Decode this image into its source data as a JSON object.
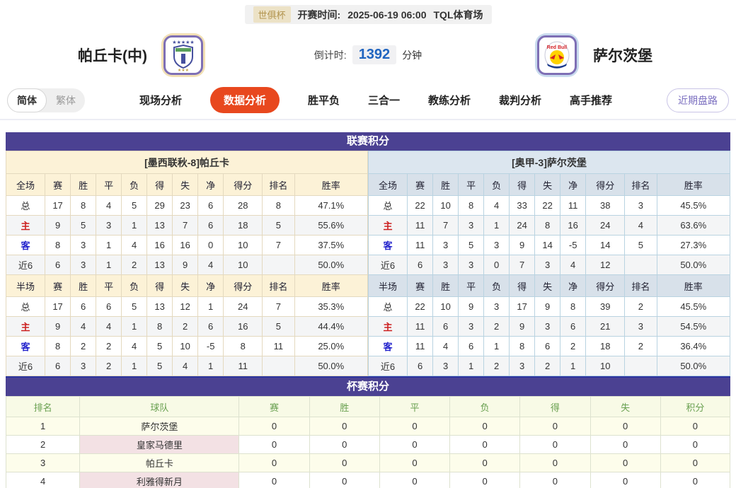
{
  "meta": {
    "league_badge": "世俱杯",
    "kickoff_label": "开赛时间:",
    "kickoff_time": "2025-06-19 06:00",
    "venue": "TQL体育场"
  },
  "header": {
    "home_team": "帕丘卡(中)",
    "away_team": "萨尔茨堡",
    "countdown_label": "倒计时:",
    "countdown_value": "1392",
    "countdown_unit": "分钟",
    "home_logo_icon": "pachuca-crest-icon",
    "away_logo_icon": "redbull-salzburg-crest-icon"
  },
  "nav": {
    "lang": [
      "简体",
      "繁体"
    ],
    "active_lang": "简体",
    "tabs": [
      "现场分析",
      "数据分析",
      "胜平负",
      "三合一",
      "教练分析",
      "裁判分析",
      "高手推荐"
    ],
    "active_tab": "数据分析",
    "recent_button": "近期盘路"
  },
  "colors": {
    "section_bar": "#4b4192",
    "active_tab": "#e8481e",
    "countdown_value": "#2065c0",
    "home_label": "#cc2020",
    "away_label": "#2222cc"
  },
  "league": {
    "title": "联赛积分",
    "columns_full": [
      "全场",
      "赛",
      "胜",
      "平",
      "负",
      "得",
      "失",
      "净",
      "得分",
      "排名",
      "胜率"
    ],
    "columns_half": [
      "半场",
      "赛",
      "胜",
      "平",
      "负",
      "得",
      "失",
      "净",
      "得分",
      "排名",
      "胜率"
    ],
    "home": {
      "subtitle": "[墨西联秋-8]帕丘卡",
      "full_rows": [
        {
          "label": "总",
          "values": [
            "17",
            "8",
            "4",
            "5",
            "29",
            "23",
            "6",
            "28",
            "8",
            "47.1%"
          ]
        },
        {
          "label": "主",
          "values": [
            "9",
            "5",
            "3",
            "1",
            "13",
            "7",
            "6",
            "18",
            "5",
            "55.6%"
          ]
        },
        {
          "label": "客",
          "values": [
            "8",
            "3",
            "1",
            "4",
            "16",
            "16",
            "0",
            "10",
            "7",
            "37.5%"
          ]
        },
        {
          "label": "近6",
          "values": [
            "6",
            "3",
            "1",
            "2",
            "13",
            "9",
            "4",
            "10",
            "",
            "50.0%"
          ]
        }
      ],
      "half_rows": [
        {
          "label": "总",
          "values": [
            "17",
            "6",
            "6",
            "5",
            "13",
            "12",
            "1",
            "24",
            "7",
            "35.3%"
          ]
        },
        {
          "label": "主",
          "values": [
            "9",
            "4",
            "4",
            "1",
            "8",
            "2",
            "6",
            "16",
            "5",
            "44.4%"
          ]
        },
        {
          "label": "客",
          "values": [
            "8",
            "2",
            "2",
            "4",
            "5",
            "10",
            "-5",
            "8",
            "11",
            "25.0%"
          ]
        },
        {
          "label": "近6",
          "values": [
            "6",
            "3",
            "2",
            "1",
            "5",
            "4",
            "1",
            "11",
            "",
            "50.0%"
          ]
        }
      ]
    },
    "away": {
      "subtitle": "[奥甲-3]萨尔茨堡",
      "full_rows": [
        {
          "label": "总",
          "values": [
            "22",
            "10",
            "8",
            "4",
            "33",
            "22",
            "11",
            "38",
            "3",
            "45.5%"
          ]
        },
        {
          "label": "主",
          "values": [
            "11",
            "7",
            "3",
            "1",
            "24",
            "8",
            "16",
            "24",
            "4",
            "63.6%"
          ]
        },
        {
          "label": "客",
          "values": [
            "11",
            "3",
            "5",
            "3",
            "9",
            "14",
            "-5",
            "14",
            "5",
            "27.3%"
          ]
        },
        {
          "label": "近6",
          "values": [
            "6",
            "3",
            "3",
            "0",
            "7",
            "3",
            "4",
            "12",
            "",
            "50.0%"
          ]
        }
      ],
      "half_rows": [
        {
          "label": "总",
          "values": [
            "22",
            "10",
            "9",
            "3",
            "17",
            "9",
            "8",
            "39",
            "2",
            "45.5%"
          ]
        },
        {
          "label": "主",
          "values": [
            "11",
            "6",
            "3",
            "2",
            "9",
            "3",
            "6",
            "21",
            "3",
            "54.5%"
          ]
        },
        {
          "label": "客",
          "values": [
            "11",
            "4",
            "6",
            "1",
            "8",
            "6",
            "2",
            "18",
            "2",
            "36.4%"
          ]
        },
        {
          "label": "近6",
          "values": [
            "6",
            "3",
            "1",
            "2",
            "3",
            "2",
            "1",
            "10",
            "",
            "50.0%"
          ]
        }
      ]
    }
  },
  "cup": {
    "title": "杯赛积分",
    "columns": [
      "排名",
      "球队",
      "赛",
      "胜",
      "平",
      "负",
      "得",
      "失",
      "积分"
    ],
    "rows": [
      {
        "rank": "1",
        "team": "萨尔茨堡",
        "values": [
          "0",
          "0",
          "0",
          "0",
          "0",
          "0",
          "0"
        ]
      },
      {
        "rank": "2",
        "team": "皇家马德里",
        "values": [
          "0",
          "0",
          "0",
          "0",
          "0",
          "0",
          "0"
        ]
      },
      {
        "rank": "3",
        "team": "帕丘卡",
        "values": [
          "0",
          "0",
          "0",
          "0",
          "0",
          "0",
          "0"
        ]
      },
      {
        "rank": "4",
        "team": "利雅得新月",
        "values": [
          "0",
          "0",
          "0",
          "0",
          "0",
          "0",
          "0"
        ]
      }
    ]
  }
}
